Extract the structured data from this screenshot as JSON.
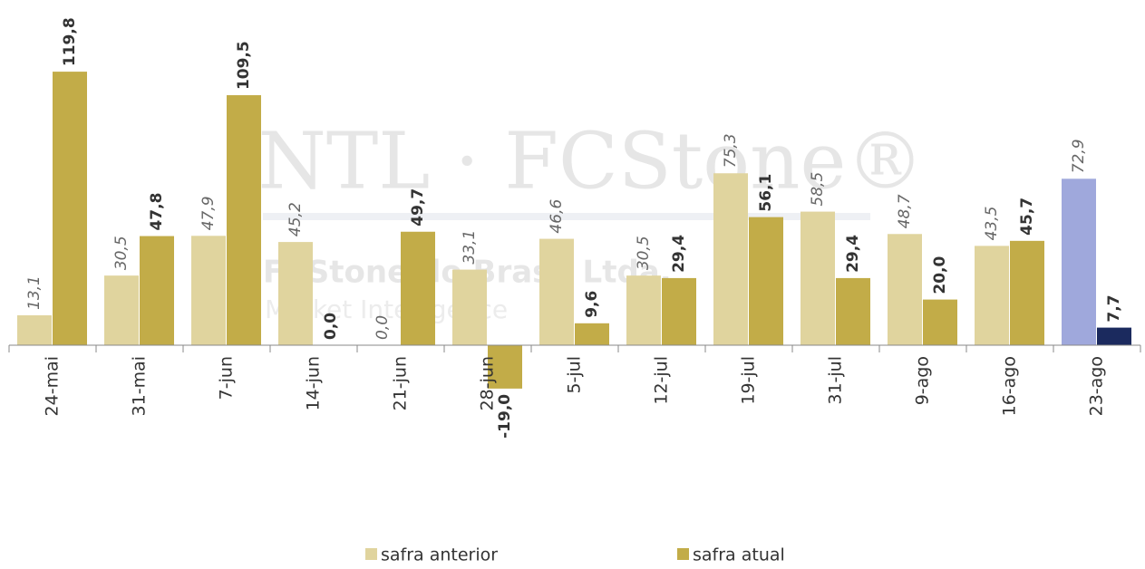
{
  "chart_data": {
    "type": "bar",
    "categories": [
      "24-mai",
      "31-mai",
      "7-jun",
      "14-jun",
      "21-jun",
      "28-jun",
      "5-jul",
      "12-jul",
      "19-jul",
      "31-jul",
      "9-ago",
      "16-ago",
      "23-ago"
    ],
    "series": [
      {
        "name": "safra anterior",
        "color": "#e0d49e",
        "colors": [
          "#e0d49e",
          "#e0d49e",
          "#e0d49e",
          "#e0d49e",
          "#e0d49e",
          "#e0d49e",
          "#e0d49e",
          "#e0d49e",
          "#e0d49e",
          "#e0d49e",
          "#e0d49e",
          "#e0d49e",
          "#9fa8dc"
        ],
        "values": [
          13.1,
          30.5,
          47.9,
          45.2,
          0.0,
          33.1,
          46.6,
          30.5,
          75.3,
          58.5,
          48.7,
          43.5,
          72.9
        ],
        "value_labels": [
          "13,1",
          "30,5",
          "47,9",
          "45,2",
          "0,0",
          "33,1",
          "46,6",
          "30,5",
          "75,3",
          "58,5",
          "48,7",
          "43,5",
          "72,9"
        ]
      },
      {
        "name": "safra atual",
        "color": "#c2ac48",
        "colors": [
          "#c2ac48",
          "#c2ac48",
          "#c2ac48",
          "#c2ac48",
          "#c2ac48",
          "#c2ac48",
          "#c2ac48",
          "#c2ac48",
          "#c2ac48",
          "#c2ac48",
          "#c2ac48",
          "#c2ac48",
          "#1b2a5e"
        ],
        "values": [
          119.8,
          47.8,
          109.5,
          0.0,
          49.7,
          -19.0,
          9.6,
          29.4,
          56.1,
          29.4,
          20.0,
          45.7,
          7.7
        ],
        "value_labels": [
          "119,8",
          "47,8",
          "109,5",
          "0,0",
          "49,7",
          "-19,0",
          "9,6",
          "29,4",
          "56,1",
          "29,4",
          "20,0",
          "45,7",
          "7,7"
        ]
      }
    ],
    "ylim": [
      -20,
      130
    ],
    "legend": "bottom",
    "annotations": [
      "INTL · FCStone®",
      "FCStone do Brasil Ltda.",
      "Market Intelligence"
    ]
  }
}
